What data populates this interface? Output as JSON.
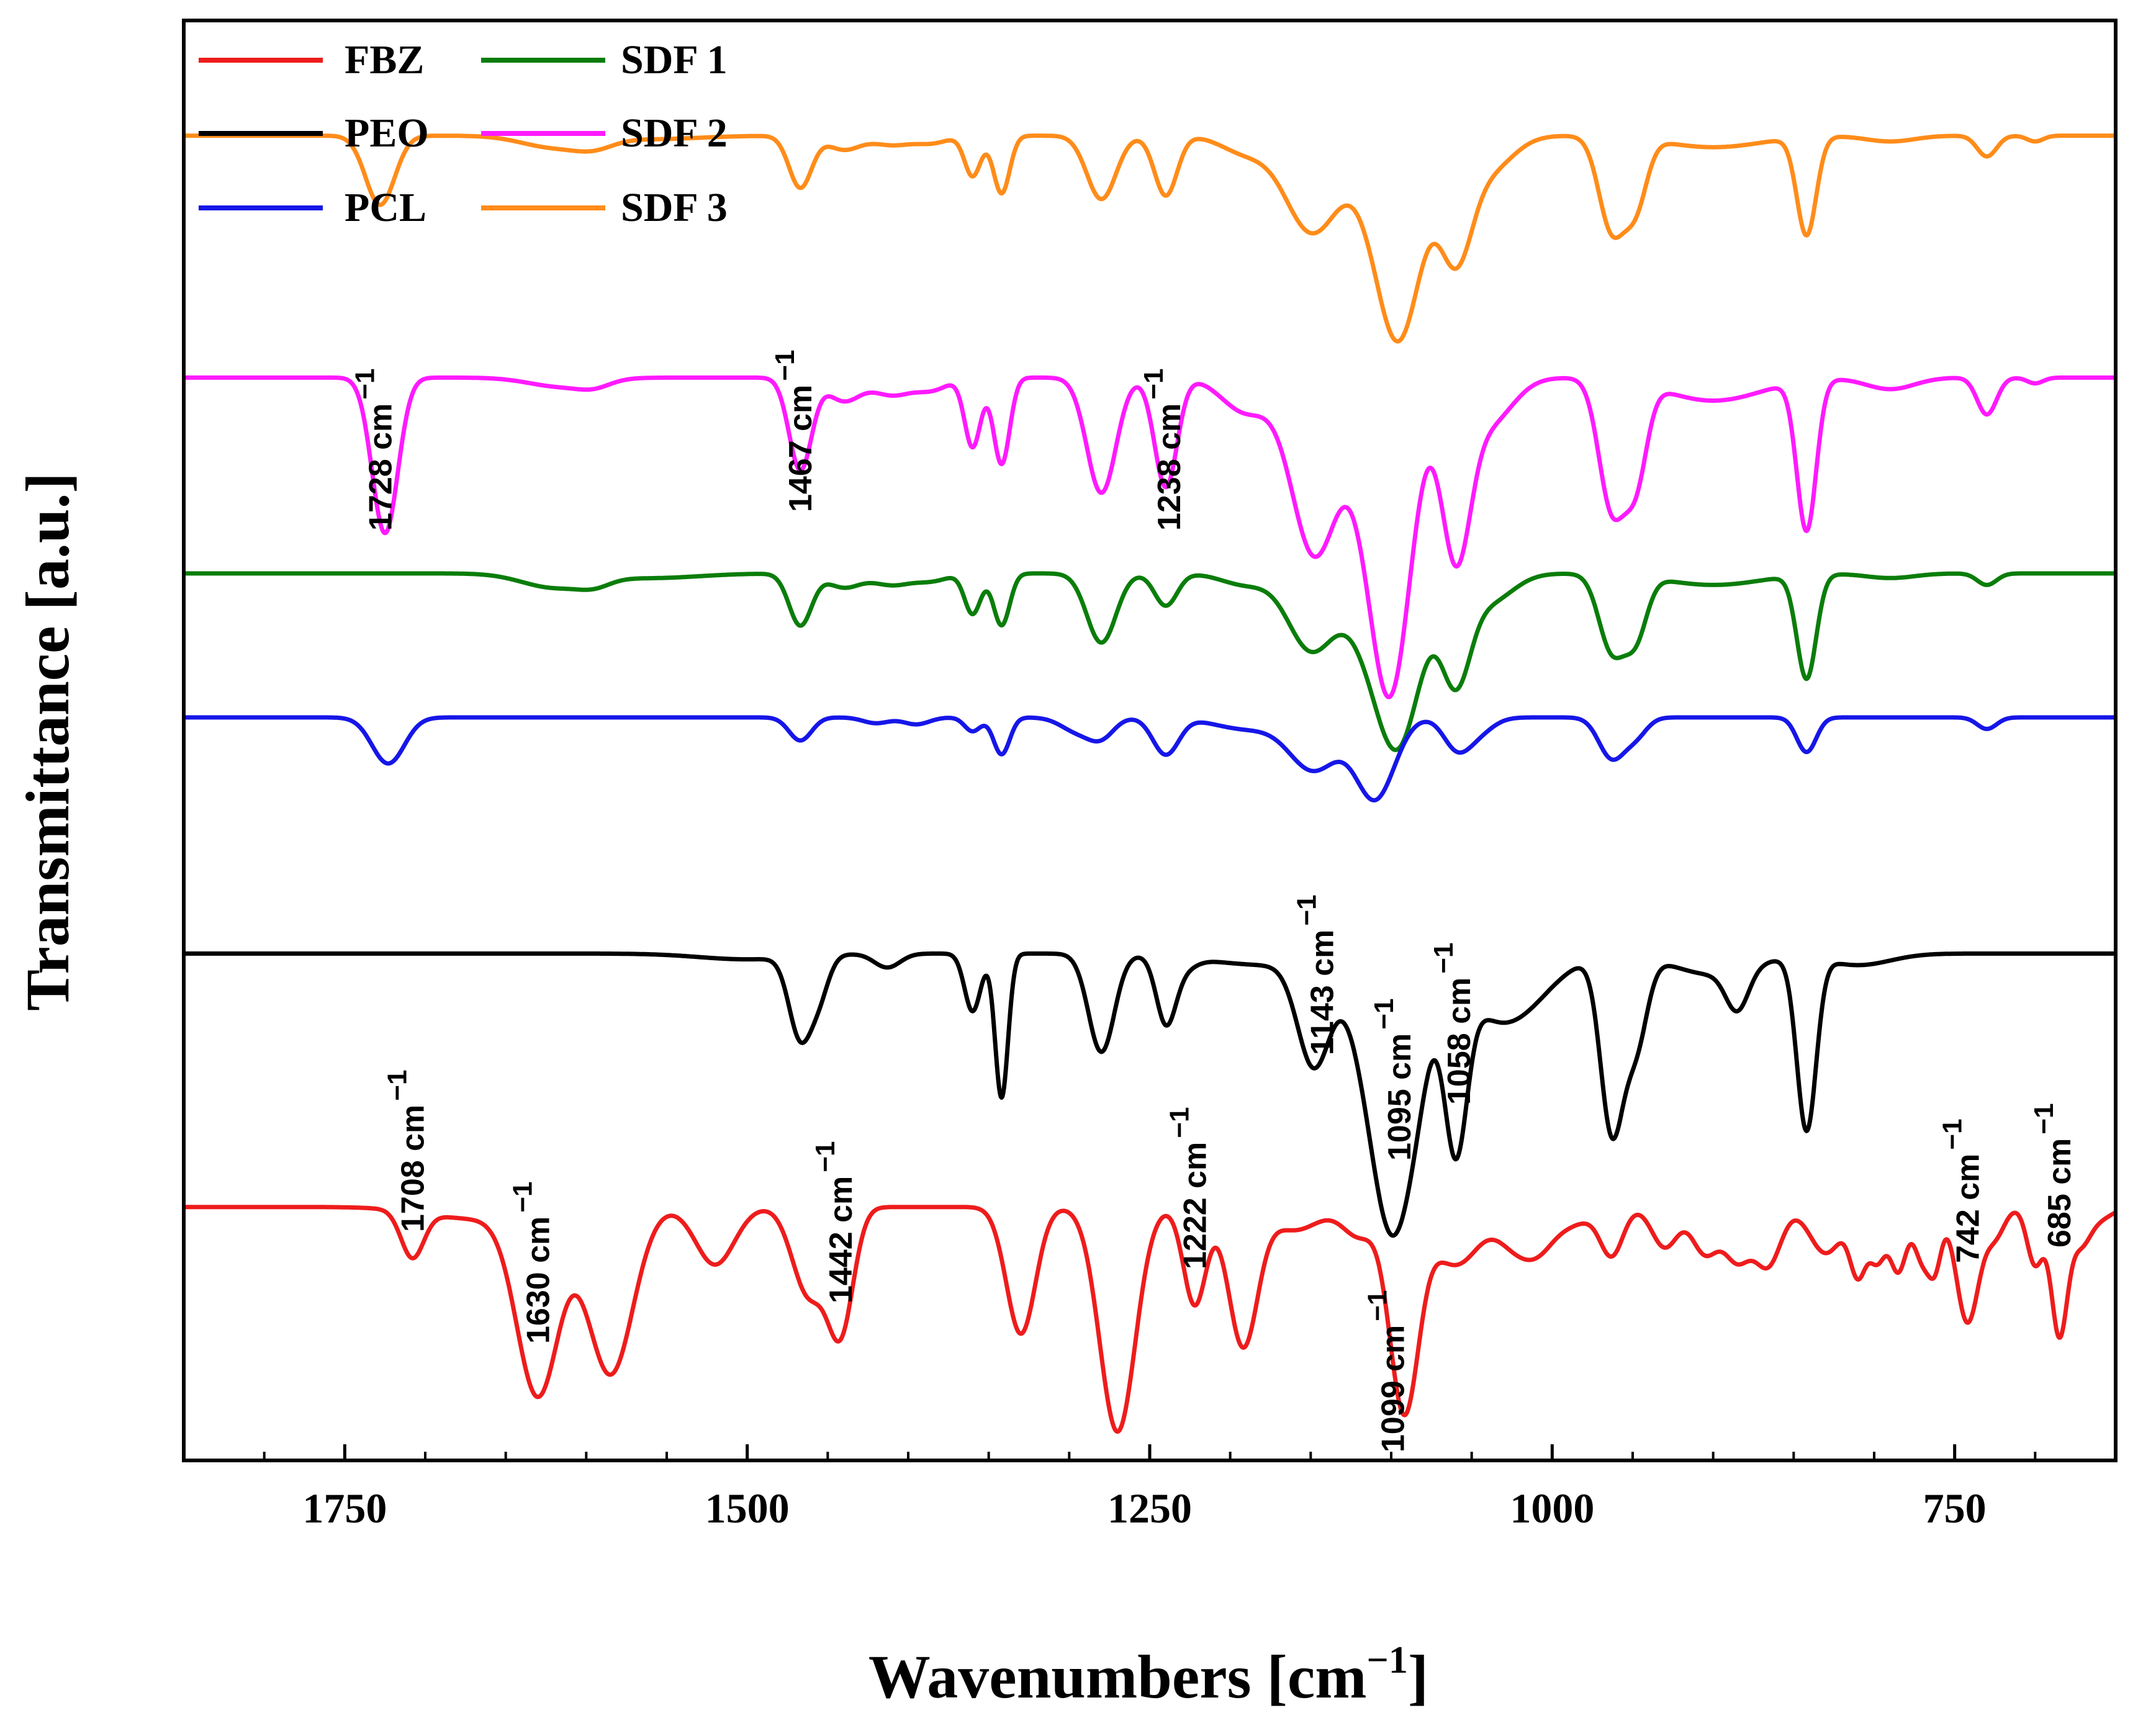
{
  "chart_data": {
    "type": "line",
    "title": "",
    "xlabel": "Wavenumbers [cm",
    "xlabel_sup": "−1",
    "xlabel_suffix": "]",
    "ylabel": "Transmittance [a.u.]",
    "xlim": [
      1850,
      650
    ],
    "x_reversed": true,
    "xticks": [
      1750,
      1500,
      1250,
      1000,
      750
    ],
    "xtick_labels": [
      "1750",
      "1500",
      "1250",
      "1000",
      "750"
    ],
    "yticks": [],
    "y_units": "offset transmittance (arbitrary)",
    "grid": false,
    "legend_position": "top-left",
    "legend": [
      {
        "label": "FBZ",
        "color": "#ee1c1c"
      },
      {
        "label": "PEO",
        "color": "#000000"
      },
      {
        "label": "PCL",
        "color": "#1616e8"
      },
      {
        "label": "SDF 1",
        "color": "#0a7d0a"
      },
      {
        "label": "SDF 2",
        "color": "#ff1aff"
      },
      {
        "label": "SDF 3",
        "color": "#ff8c1a"
      }
    ],
    "series": [
      {
        "name": "SDF 3",
        "color": "#ff8c1a",
        "baseline": 9.0,
        "peaks": [
          [
            1728,
            0.6,
            9
          ],
          [
            1620,
            0.1,
            20
          ],
          [
            1595,
            0.07,
            12
          ],
          [
            1560,
            0.03,
            30
          ],
          [
            1467,
            0.45,
            7
          ],
          [
            1440,
            0.12,
            10
          ],
          [
            1410,
            0.08,
            12
          ],
          [
            1385,
            0.06,
            10
          ],
          [
            1360,
            0.35,
            5
          ],
          [
            1342,
            0.5,
            5
          ],
          [
            1280,
            0.55,
            9
          ],
          [
            1240,
            0.52,
            7
          ],
          [
            1190,
            0.15,
            15
          ],
          [
            1150,
            0.8,
            16
          ],
          [
            1110,
            0.3,
            20
          ],
          [
            1095,
            1.55,
            14
          ],
          [
            1060,
            0.95,
            10
          ],
          [
            1040,
            0.3,
            15
          ],
          [
            963,
            0.8,
            8
          ],
          [
            948,
            0.55,
            7
          ],
          [
            900,
            0.1,
            30
          ],
          [
            842,
            0.85,
            6
          ],
          [
            790,
            0.05,
            15
          ],
          [
            730,
            0.18,
            6
          ],
          [
            700,
            0.05,
            5
          ]
        ]
      },
      {
        "name": "SDF 2",
        "color": "#ff1aff",
        "baseline": 6.9,
        "peaks": [
          [
            1725,
            1.35,
            8
          ],
          [
            1615,
            0.08,
            20
          ],
          [
            1595,
            0.05,
            10
          ],
          [
            1467,
            0.8,
            7
          ],
          [
            1440,
            0.2,
            10
          ],
          [
            1410,
            0.15,
            12
          ],
          [
            1385,
            0.1,
            10
          ],
          [
            1360,
            0.6,
            5
          ],
          [
            1342,
            0.75,
            5
          ],
          [
            1280,
            1.0,
            9
          ],
          [
            1240,
            0.95,
            7
          ],
          [
            1190,
            0.3,
            15
          ],
          [
            1148,
            1.5,
            14
          ],
          [
            1115,
            0.5,
            15
          ],
          [
            1100,
            2.45,
            13
          ],
          [
            1060,
            1.45,
            9
          ],
          [
            1040,
            0.4,
            15
          ],
          [
            963,
            1.1,
            8
          ],
          [
            948,
            0.8,
            7
          ],
          [
            900,
            0.2,
            30
          ],
          [
            842,
            1.3,
            6
          ],
          [
            790,
            0.1,
            15
          ],
          [
            730,
            0.32,
            6
          ],
          [
            700,
            0.05,
            5
          ]
        ]
      },
      {
        "name": "SDF 1",
        "color": "#0a7d0a",
        "baseline": 5.2,
        "peaks": [
          [
            1620,
            0.12,
            20
          ],
          [
            1595,
            0.06,
            10
          ],
          [
            1560,
            0.04,
            30
          ],
          [
            1467,
            0.45,
            7
          ],
          [
            1440,
            0.12,
            10
          ],
          [
            1410,
            0.1,
            12
          ],
          [
            1385,
            0.06,
            10
          ],
          [
            1360,
            0.35,
            5
          ],
          [
            1342,
            0.45,
            5
          ],
          [
            1280,
            0.6,
            9
          ],
          [
            1240,
            0.28,
            7
          ],
          [
            1190,
            0.1,
            15
          ],
          [
            1150,
            0.65,
            14
          ],
          [
            1115,
            0.4,
            15
          ],
          [
            1095,
            1.35,
            14
          ],
          [
            1060,
            0.85,
            9
          ],
          [
            1040,
            0.25,
            15
          ],
          [
            963,
            0.65,
            8
          ],
          [
            948,
            0.5,
            7
          ],
          [
            900,
            0.1,
            30
          ],
          [
            842,
            0.9,
            6
          ],
          [
            790,
            0.04,
            15
          ],
          [
            730,
            0.1,
            6
          ]
        ]
      },
      {
        "name": "PCL",
        "color": "#1616e8",
        "baseline": 3.95,
        "peaks": [
          [
            1723,
            0.4,
            10
          ],
          [
            1467,
            0.2,
            7
          ],
          [
            1420,
            0.05,
            8
          ],
          [
            1395,
            0.06,
            8
          ],
          [
            1360,
            0.12,
            5
          ],
          [
            1342,
            0.32,
            5
          ],
          [
            1295,
            0.12,
            10
          ],
          [
            1280,
            0.16,
            8
          ],
          [
            1240,
            0.32,
            8
          ],
          [
            1190,
            0.1,
            20
          ],
          [
            1148,
            0.45,
            15
          ],
          [
            1110,
            0.7,
            12
          ],
          [
            1060,
            0.22,
            8
          ],
          [
            1048,
            0.15,
            10
          ],
          [
            963,
            0.35,
            8
          ],
          [
            948,
            0.15,
            7
          ],
          [
            842,
            0.3,
            6
          ],
          [
            730,
            0.1,
            6
          ]
        ]
      },
      {
        "name": "PEO",
        "color": "#000000",
        "baseline": 1.9,
        "peaks": [
          [
            1500,
            0.05,
            30
          ],
          [
            1467,
            0.7,
            7
          ],
          [
            1455,
            0.3,
            6
          ],
          [
            1413,
            0.12,
            8
          ],
          [
            1360,
            0.5,
            5
          ],
          [
            1342,
            1.25,
            4
          ],
          [
            1280,
            0.85,
            8
          ],
          [
            1240,
            0.55,
            6
          ],
          [
            1230,
            0.1,
            8
          ],
          [
            1175,
            0.1,
            40
          ],
          [
            1148,
            0.9,
            10
          ],
          [
            1115,
            0.7,
            12
          ],
          [
            1100,
            1.8,
            11
          ],
          [
            1085,
            0.9,
            10
          ],
          [
            1060,
            1.45,
            7
          ],
          [
            1030,
            0.6,
            25
          ],
          [
            963,
            1.5,
            7
          ],
          [
            948,
            0.75,
            7
          ],
          [
            900,
            0.18,
            25
          ],
          [
            885,
            0.35,
            7
          ],
          [
            842,
            1.5,
            6
          ],
          [
            810,
            0.1,
            20
          ]
        ]
      },
      {
        "name": "FBZ",
        "color": "#ee1c1c",
        "baseline": -0.3,
        "peaks": [
          [
            1708,
            0.4,
            7
          ],
          [
            1670,
            0.1,
            30
          ],
          [
            1630,
            1.6,
            13
          ],
          [
            1585,
            1.45,
            14
          ],
          [
            1520,
            0.5,
            12
          ],
          [
            1462,
            0.75,
            10
          ],
          [
            1442,
            1.05,
            8
          ],
          [
            1330,
            1.1,
            9
          ],
          [
            1270,
            1.95,
            11
          ],
          [
            1222,
            0.85,
            7
          ],
          [
            1192,
            1.2,
            9
          ],
          [
            1160,
            0.2,
            15
          ],
          [
            1120,
            0.25,
            10
          ],
          [
            1092,
            1.75,
            9
          ],
          [
            1060,
            0.5,
            15
          ],
          [
            1025,
            0.25,
            10
          ],
          [
            1010,
            0.3,
            10
          ],
          [
            990,
            0.15,
            15
          ],
          [
            963,
            0.4,
            7
          ],
          [
            930,
            0.35,
            8
          ],
          [
            905,
            0.4,
            8
          ],
          [
            885,
            0.45,
            8
          ],
          [
            866,
            0.5,
            8
          ],
          [
            830,
            0.4,
            10
          ],
          [
            810,
            0.55,
            5
          ],
          [
            798,
            0.45,
            5
          ],
          [
            785,
            0.55,
            5
          ],
          [
            770,
            0.45,
            5
          ],
          [
            762,
            0.45,
            4
          ],
          [
            742,
            1.0,
            7
          ],
          [
            725,
            0.25,
            6
          ],
          [
            700,
            0.5,
            5
          ],
          [
            685,
            1.1,
            5
          ],
          [
            672,
            0.3,
            6
          ],
          [
            660,
            0.1,
            8
          ]
        ]
      }
    ],
    "annotations": [
      {
        "label": "1728 cm",
        "sup": "−1",
        "x": 1728
      },
      {
        "label": "1467 cm",
        "sup": "−1",
        "x": 1467
      },
      {
        "label": "1238 cm",
        "sup": "−1",
        "x": 1238
      },
      {
        "label": "1143 cm",
        "sup": "−1",
        "x": 1143
      },
      {
        "label": "1095 cm",
        "sup": "−1",
        "x": 1095
      },
      {
        "label": "1058 cm",
        "sup": "−1",
        "x": 1058
      },
      {
        "label": "1708 cm",
        "sup": "−1",
        "x": 1708
      },
      {
        "label": "1630 cm",
        "sup": "−1",
        "x": 1630
      },
      {
        "label": "1442 cm",
        "sup": "−1",
        "x": 1442
      },
      {
        "label": "1222 cm",
        "sup": "−1",
        "x": 1222
      },
      {
        "label": "1099 cm",
        "sup": "−1",
        "x": 1099
      },
      {
        "label": "742 cm",
        "sup": "−1",
        "x": 742
      },
      {
        "label": "685 cm",
        "sup": "−1",
        "x": 685
      }
    ]
  }
}
